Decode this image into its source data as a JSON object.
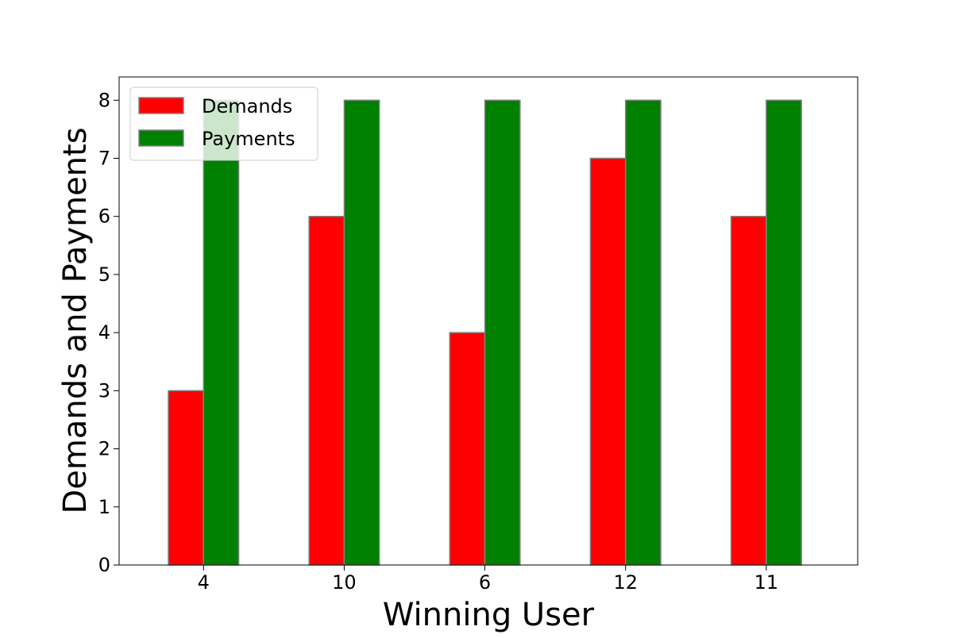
{
  "chart_data": {
    "type": "bar",
    "title": "",
    "xlabel": "Winning User",
    "ylabel": "Demands and Payments",
    "categories": [
      "4",
      "10",
      "6",
      "12",
      "11"
    ],
    "series": [
      {
        "name": "Demands",
        "color": "#ff0000",
        "values": [
          3,
          6,
          4,
          7,
          6
        ]
      },
      {
        "name": "Payments",
        "color": "#008000",
        "values": [
          8,
          8,
          8,
          8,
          8
        ]
      }
    ],
    "ylim": [
      0,
      8.4
    ],
    "yticks": [
      0,
      1,
      2,
      3,
      4,
      5,
      6,
      7,
      8
    ],
    "grid": false,
    "legend_position": "top-left"
  }
}
